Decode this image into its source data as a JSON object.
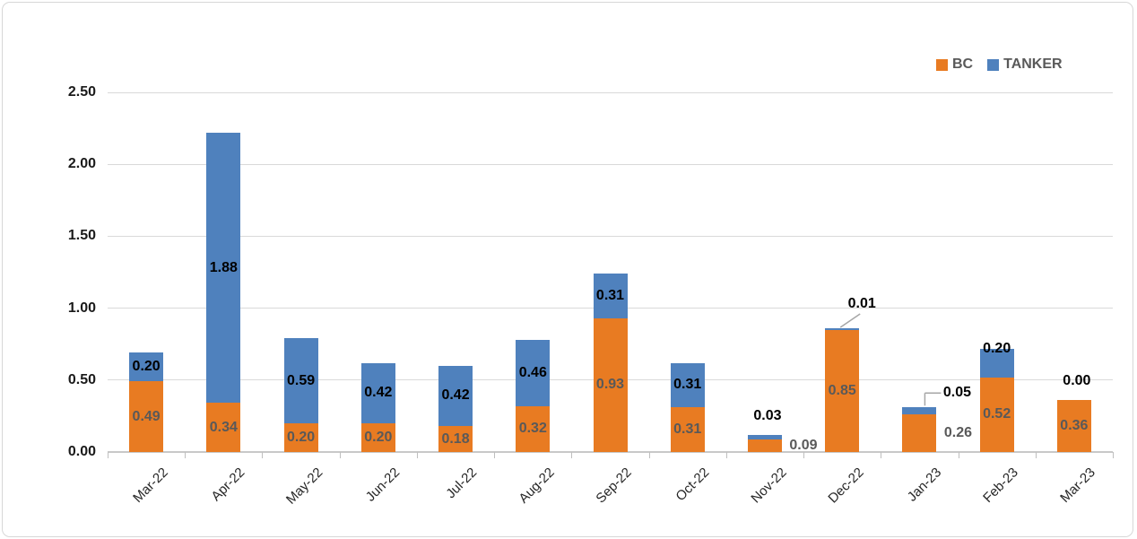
{
  "chart_data": {
    "type": "bar",
    "stacked": true,
    "title": "",
    "categories": [
      "Mar-22",
      "Apr-22",
      "May-22",
      "Jun-22",
      "Jul-22",
      "Aug-22",
      "Sep-22",
      "Oct-22",
      "Nov-22",
      "Dec-22",
      "Jan-23",
      "Feb-23",
      "Mar-23"
    ],
    "series": [
      {
        "name": "BC",
        "color": "#e87b22",
        "label_color": "#595959",
        "values": [
          0.49,
          0.34,
          0.2,
          0.2,
          0.18,
          0.32,
          0.93,
          0.31,
          0.09,
          0.85,
          0.26,
          0.52,
          0.36
        ],
        "label_pos": [
          "in",
          "in",
          "in",
          "in",
          "in",
          "in",
          "in",
          "in",
          "right",
          "in",
          "right",
          "in",
          "in"
        ]
      },
      {
        "name": "TANKER",
        "color": "#4f81bd",
        "label_color": "#000000",
        "values": [
          0.2,
          1.88,
          0.59,
          0.42,
          0.42,
          0.46,
          0.31,
          0.31,
          0.03,
          0.01,
          0.05,
          0.2,
          0.0
        ],
        "label_pos": [
          "in",
          "in",
          "in",
          "in",
          "in",
          "in",
          "in",
          "in",
          "above",
          "leader-diag",
          "leader-elbow",
          "in-top",
          "above"
        ]
      }
    ],
    "y_axis": {
      "min": 0,
      "max": 2.5,
      "tick_labels": [
        "0.00",
        "0.50",
        "1.00",
        "1.50",
        "2.00",
        "2.50"
      ]
    },
    "x_axis": {
      "rotation": -45
    },
    "value_format": "0.00",
    "grid": true,
    "legend_position": "top-right",
    "colors": {
      "gridline": "#d9d9d9",
      "axis_line": "#c8c8c8",
      "tick": "#bfbfbf",
      "leader_line": "#a6a6a6",
      "legend_text": "#595959"
    }
  }
}
